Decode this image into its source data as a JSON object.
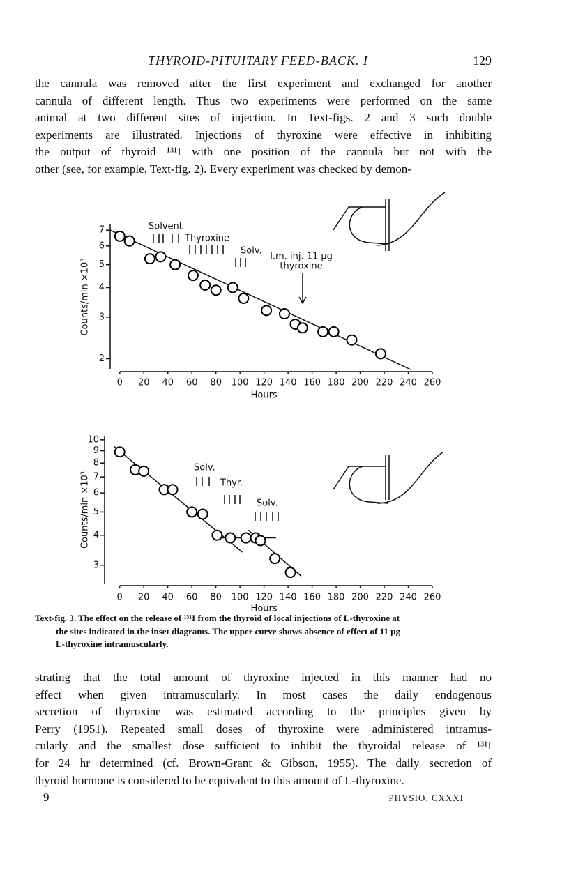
{
  "header": {
    "title": "THYROID-PITUITARY FEED-BACK. I",
    "page_number": "129"
  },
  "paragraphs": [
    [
      "the cannula was removed after the first experiment and exchanged for another",
      "cannula of different length. Thus two experiments were performed on the same",
      "animal at two different sites of injection. In Text-figs. 2 and 3 such double",
      "experiments are illustrated. Injections of thyroxine were effective in inhibiting",
      "the output of thyroid ¹³¹I with one position of the cannula but not with the",
      "other (see, for example, Text-fig. 2). Every experiment was checked by demon-"
    ],
    [
      "strating that the total amount of thyroxine injected in this manner had no",
      "effect when given intramuscularly. In most cases the daily endogenous",
      "secretion of thyroxine was estimated according to the principles given by",
      "Perry (1951). Repeated small doses of thyroxine were administered intramus-",
      "cularly and the smallest dose sufficient to inhibit the thyroidal release of ¹³¹I",
      "for 24 hr determined (cf. Brown-Grant & Gibson, 1955). The daily secretion of",
      "thyroid hormone is considered to be equivalent to this amount of L-thyroxine."
    ]
  ],
  "chart_data": [
    {
      "type": "scatter",
      "x_label": "Hours",
      "y_label": "Counts/min ×10³",
      "yscale": "log",
      "color": "#000000",
      "x": [
        0,
        8,
        25,
        34,
        46,
        61,
        71,
        80,
        94,
        103,
        122,
        137,
        146,
        152,
        169,
        178,
        193,
        217
      ],
      "values": [
        6.6,
        6.3,
        5.3,
        5.4,
        5.0,
        4.5,
        4.1,
        3.9,
        4.0,
        3.6,
        3.2,
        3.1,
        2.8,
        2.7,
        2.6,
        2.6,
        2.4,
        2.1
      ],
      "fit_lines": [
        {
          "x": [
            -8,
            242
          ],
          "y": [
            7.0,
            1.8
          ]
        }
      ],
      "annotations": [
        "Solvent",
        "Thyroxine",
        "Solv.",
        "I.m. inj. 11 µg",
        "thyroxine"
      ],
      "xlim": [
        -8,
        260
      ],
      "ylim": [
        1.8,
        7.4
      ],
      "xticks": [
        0,
        20,
        40,
        60,
        80,
        100,
        120,
        140,
        160,
        180,
        200,
        220,
        240,
        260
      ],
      "yticks": [
        2,
        3,
        4,
        5,
        6,
        7
      ]
    },
    {
      "type": "scatter",
      "x_label": "Hours",
      "y_label": "Counts/min ×10³",
      "yscale": "log",
      "color": "#000000",
      "x": [
        0,
        13,
        20,
        37,
        44,
        60,
        69,
        81,
        92,
        105,
        113,
        117,
        129,
        142
      ],
      "values": [
        8.9,
        7.5,
        7.4,
        6.2,
        6.2,
        5.0,
        4.9,
        4.0,
        3.9,
        3.9,
        3.9,
        3.8,
        3.2,
        2.8
      ],
      "fit_lines": [
        {
          "x": [
            -5,
            102
          ],
          "y": [
            9.4,
            3.4
          ]
        },
        {
          "x": [
            77,
            130
          ],
          "y": [
            3.9,
            3.9
          ]
        },
        {
          "x": [
            107,
            151
          ],
          "y": [
            4.2,
            2.7
          ]
        }
      ],
      "annotations": [
        "Solv.",
        "Thyr.",
        "Solv."
      ],
      "xlim": [
        -12,
        260
      ],
      "ylim": [
        2.5,
        10.4
      ],
      "xticks": [
        0,
        20,
        40,
        60,
        80,
        100,
        120,
        140,
        160,
        180,
        200,
        220,
        240,
        260
      ],
      "yticks": [
        3,
        4,
        5,
        6,
        7,
        8,
        9,
        10
      ]
    }
  ],
  "caption": [
    "Text-fig. 3. The effect on the release of ¹³¹I from the thyroid of local injections of L-thyroxine at",
    "the sites indicated in the inset diagrams. The upper curve shows absence of effect of 11 µg",
    "L-thyroxine intramuscularly."
  ],
  "footer": {
    "left": "9",
    "right": "PHYSIO. CXXXI"
  }
}
